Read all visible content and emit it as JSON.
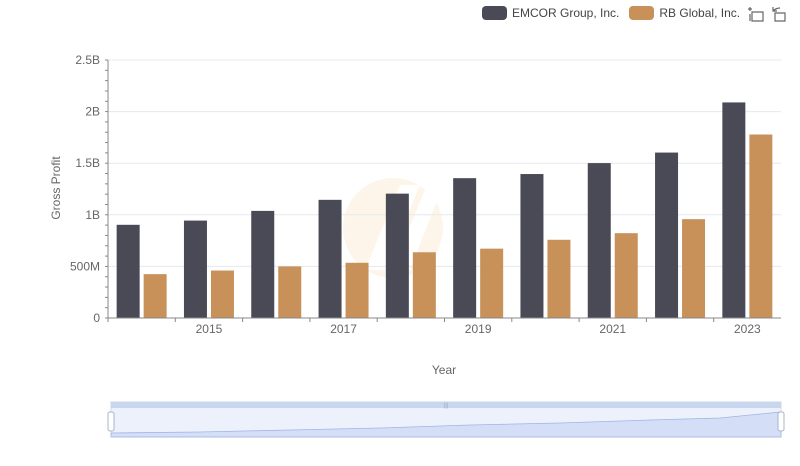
{
  "chart_data": {
    "type": "bar",
    "xlabel": "Year",
    "ylabel": "Gross Profit",
    "ylim": [
      0,
      2500000000
    ],
    "yticks": [
      {
        "value": 0,
        "label": "0"
      },
      {
        "value": 500000000,
        "label": "500M"
      },
      {
        "value": 1000000000,
        "label": "1B"
      },
      {
        "value": 1500000000,
        "label": "1.5B"
      },
      {
        "value": 2000000000,
        "label": "2B"
      },
      {
        "value": 2500000000,
        "label": "2.5B"
      }
    ],
    "categories": [
      "2014",
      "2015",
      "2016",
      "2017",
      "2018",
      "2019",
      "2020",
      "2021",
      "2022",
      "2023"
    ],
    "xtick_labels": [
      "2015",
      "2017",
      "2019",
      "2021",
      "2023"
    ],
    "grid": true,
    "legend_position": "top-right",
    "series": [
      {
        "name": "EMCOR Group, Inc.",
        "color": "#4a4a56",
        "values": [
          903000000,
          944000000,
          1038000000,
          1145000000,
          1205000000,
          1355000000,
          1395000000,
          1501000000,
          1603000000,
          2089000000
        ]
      },
      {
        "name": "RB Global, Inc.",
        "color": "#c8915a",
        "values": [
          425000000,
          460000000,
          500000000,
          535000000,
          637000000,
          672000000,
          758000000,
          822000000,
          958000000,
          1778000000
        ]
      }
    ]
  },
  "toolbox": {
    "icons": [
      "zoom-icon",
      "restore-icon"
    ]
  }
}
